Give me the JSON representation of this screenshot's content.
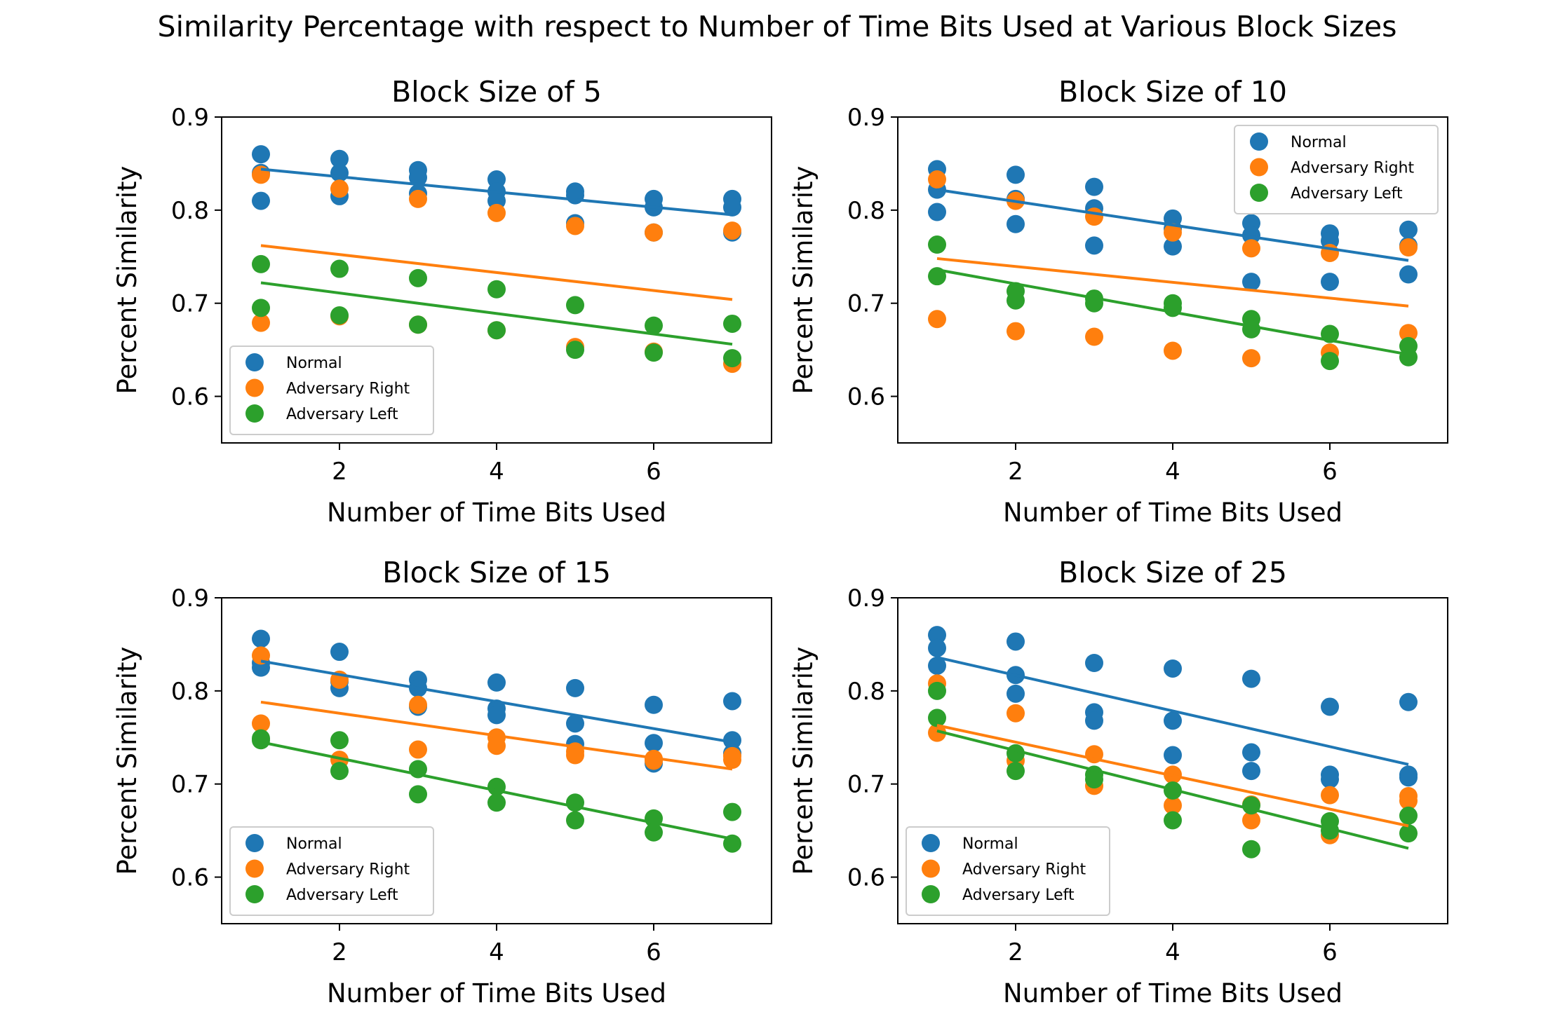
{
  "figure": {
    "suptitle": "Similarity Percentage with respect to Number of Time Bits Used at Various Block Sizes"
  },
  "chart_data": [
    {
      "type": "scatter",
      "title": "Block Size of 5",
      "xlabel": "Number of Time Bits Used",
      "ylabel": "Percent Similarity",
      "xlim": [
        0.5,
        7.5
      ],
      "ylim": [
        0.55,
        0.9
      ],
      "xticks": [
        2,
        4,
        6
      ],
      "yticks": [
        0.6,
        0.7,
        0.8,
        0.9
      ],
      "legend_position": "lower-left",
      "series": [
        {
          "name": "Normal",
          "color": "#1f77b4",
          "points": [
            [
              1,
              0.86
            ],
            [
              1,
              0.84
            ],
            [
              1,
              0.81
            ],
            [
              2,
              0.855
            ],
            [
              2,
              0.84
            ],
            [
              2,
              0.815
            ],
            [
              3,
              0.843
            ],
            [
              3,
              0.835
            ],
            [
              3,
              0.818
            ],
            [
              4,
              0.833
            ],
            [
              4,
              0.82
            ],
            [
              4,
              0.81
            ],
            [
              5,
              0.82
            ],
            [
              5,
              0.816
            ],
            [
              5,
              0.786
            ],
            [
              6,
              0.812
            ],
            [
              6,
              0.803
            ],
            [
              6,
              0.776
            ],
            [
              7,
              0.812
            ],
            [
              7,
              0.803
            ],
            [
              7,
              0.776
            ]
          ],
          "trend": [
            [
              1,
              0.844
            ],
            [
              7,
              0.795
            ]
          ]
        },
        {
          "name": "Adversary Right",
          "color": "#ff7f0e",
          "points": [
            [
              1,
              0.838
            ],
            [
              1,
              0.679
            ],
            [
              2,
              0.823
            ],
            [
              2,
              0.686
            ],
            [
              3,
              0.812
            ],
            [
              3,
              0.677
            ],
            [
              4,
              0.797
            ],
            [
              4,
              0.671
            ],
            [
              5,
              0.783
            ],
            [
              5,
              0.653
            ],
            [
              6,
              0.776
            ],
            [
              6,
              0.648
            ],
            [
              7,
              0.778
            ],
            [
              7,
              0.635
            ]
          ],
          "trend": [
            [
              1,
              0.762
            ],
            [
              7,
              0.704
            ]
          ]
        },
        {
          "name": "Adversary Left",
          "color": "#2ca02c",
          "points": [
            [
              1,
              0.742
            ],
            [
              1,
              0.695
            ],
            [
              2,
              0.737
            ],
            [
              2,
              0.687
            ],
            [
              3,
              0.727
            ],
            [
              3,
              0.677
            ],
            [
              4,
              0.715
            ],
            [
              4,
              0.671
            ],
            [
              5,
              0.698
            ],
            [
              5,
              0.65
            ],
            [
              6,
              0.676
            ],
            [
              6,
              0.647
            ],
            [
              7,
              0.678
            ],
            [
              7,
              0.641
            ]
          ],
          "trend": [
            [
              1,
              0.722
            ],
            [
              7,
              0.656
            ]
          ]
        }
      ]
    },
    {
      "type": "scatter",
      "title": "Block Size of 10",
      "xlabel": "Number of Time Bits Used",
      "ylabel": "Percent Similarity",
      "xlim": [
        0.5,
        7.5
      ],
      "ylim": [
        0.55,
        0.9
      ],
      "xticks": [
        2,
        4,
        6
      ],
      "yticks": [
        0.6,
        0.7,
        0.8,
        0.9
      ],
      "legend_position": "upper-right",
      "series": [
        {
          "name": "Normal",
          "color": "#1f77b4",
          "points": [
            [
              1,
              0.844
            ],
            [
              1,
              0.822
            ],
            [
              1,
              0.798
            ],
            [
              2,
              0.838
            ],
            [
              2,
              0.812
            ],
            [
              2,
              0.785
            ],
            [
              3,
              0.825
            ],
            [
              3,
              0.802
            ],
            [
              3,
              0.762
            ],
            [
              4,
              0.791
            ],
            [
              4,
              0.78
            ],
            [
              4,
              0.761
            ],
            [
              5,
              0.786
            ],
            [
              5,
              0.773
            ],
            [
              5,
              0.723
            ],
            [
              6,
              0.775
            ],
            [
              6,
              0.767
            ],
            [
              6,
              0.723
            ],
            [
              7,
              0.779
            ],
            [
              7,
              0.762
            ],
            [
              7,
              0.731
            ]
          ],
          "trend": [
            [
              1,
              0.822
            ],
            [
              7,
              0.746
            ]
          ]
        },
        {
          "name": "Adversary Right",
          "color": "#ff7f0e",
          "points": [
            [
              1,
              0.833
            ],
            [
              1,
              0.683
            ],
            [
              2,
              0.81
            ],
            [
              2,
              0.67
            ],
            [
              3,
              0.793
            ],
            [
              3,
              0.664
            ],
            [
              4,
              0.776
            ],
            [
              4,
              0.649
            ],
            [
              5,
              0.759
            ],
            [
              5,
              0.641
            ],
            [
              6,
              0.754
            ],
            [
              6,
              0.647
            ],
            [
              7,
              0.76
            ],
            [
              7,
              0.668
            ]
          ],
          "trend": [
            [
              1,
              0.748
            ],
            [
              7,
              0.697
            ]
          ]
        },
        {
          "name": "Adversary Left",
          "color": "#2ca02c",
          "points": [
            [
              1,
              0.763
            ],
            [
              1,
              0.729
            ],
            [
              2,
              0.713
            ],
            [
              2,
              0.703
            ],
            [
              3,
              0.705
            ],
            [
              3,
              0.7
            ],
            [
              4,
              0.7
            ],
            [
              4,
              0.695
            ],
            [
              5,
              0.683
            ],
            [
              5,
              0.672
            ],
            [
              6,
              0.667
            ],
            [
              6,
              0.638
            ],
            [
              7,
              0.654
            ],
            [
              7,
              0.642
            ]
          ],
          "trend": [
            [
              1,
              0.736
            ],
            [
              7,
              0.645
            ]
          ]
        }
      ]
    },
    {
      "type": "scatter",
      "title": "Block Size of 15",
      "xlabel": "Number of Time Bits Used",
      "ylabel": "Percent Similarity",
      "xlim": [
        0.5,
        7.5
      ],
      "ylim": [
        0.55,
        0.9
      ],
      "xticks": [
        2,
        4,
        6
      ],
      "yticks": [
        0.6,
        0.7,
        0.8,
        0.9
      ],
      "legend_position": "lower-left",
      "series": [
        {
          "name": "Normal",
          "color": "#1f77b4",
          "points": [
            [
              1,
              0.856
            ],
            [
              1,
              0.83
            ],
            [
              1,
              0.825
            ],
            [
              2,
              0.842
            ],
            [
              2,
              0.81
            ],
            [
              2,
              0.803
            ],
            [
              3,
              0.812
            ],
            [
              3,
              0.803
            ],
            [
              3,
              0.783
            ],
            [
              4,
              0.809
            ],
            [
              4,
              0.781
            ],
            [
              4,
              0.774
            ],
            [
              5,
              0.803
            ],
            [
              5,
              0.765
            ],
            [
              5,
              0.743
            ],
            [
              6,
              0.785
            ],
            [
              6,
              0.744
            ],
            [
              6,
              0.722
            ],
            [
              7,
              0.789
            ],
            [
              7,
              0.747
            ],
            [
              7,
              0.733
            ]
          ],
          "trend": [
            [
              1,
              0.832
            ],
            [
              7,
              0.745
            ]
          ]
        },
        {
          "name": "Adversary Right",
          "color": "#ff7f0e",
          "points": [
            [
              1,
              0.838
            ],
            [
              1,
              0.765
            ],
            [
              2,
              0.812
            ],
            [
              2,
              0.726
            ],
            [
              3,
              0.785
            ],
            [
              3,
              0.737
            ],
            [
              4,
              0.75
            ],
            [
              4,
              0.741
            ],
            [
              5,
              0.735
            ],
            [
              5,
              0.731
            ],
            [
              6,
              0.727
            ],
            [
              6,
              0.725
            ],
            [
              7,
              0.73
            ],
            [
              7,
              0.726
            ]
          ],
          "trend": [
            [
              1,
              0.788
            ],
            [
              7,
              0.716
            ]
          ]
        },
        {
          "name": "Adversary Left",
          "color": "#2ca02c",
          "points": [
            [
              1,
              0.749
            ],
            [
              1,
              0.747
            ],
            [
              2,
              0.747
            ],
            [
              2,
              0.714
            ],
            [
              3,
              0.716
            ],
            [
              3,
              0.689
            ],
            [
              4,
              0.697
            ],
            [
              4,
              0.68
            ],
            [
              5,
              0.68
            ],
            [
              5,
              0.661
            ],
            [
              6,
              0.663
            ],
            [
              6,
              0.648
            ],
            [
              7,
              0.67
            ],
            [
              7,
              0.636
            ]
          ],
          "trend": [
            [
              1,
              0.745
            ],
            [
              7,
              0.641
            ]
          ]
        }
      ]
    },
    {
      "type": "scatter",
      "title": "Block Size of 25",
      "xlabel": "Number of Time Bits Used",
      "ylabel": "Percent Similarity",
      "xlim": [
        0.5,
        7.5
      ],
      "ylim": [
        0.55,
        0.9
      ],
      "xticks": [
        2,
        4,
        6
      ],
      "yticks": [
        0.6,
        0.7,
        0.8,
        0.9
      ],
      "legend_position": "lower-left",
      "series": [
        {
          "name": "Normal",
          "color": "#1f77b4",
          "points": [
            [
              1,
              0.86
            ],
            [
              1,
              0.846
            ],
            [
              1,
              0.827
            ],
            [
              2,
              0.853
            ],
            [
              2,
              0.817
            ],
            [
              2,
              0.797
            ],
            [
              3,
              0.83
            ],
            [
              3,
              0.777
            ],
            [
              3,
              0.768
            ],
            [
              4,
              0.824
            ],
            [
              4,
              0.768
            ],
            [
              4,
              0.731
            ],
            [
              5,
              0.813
            ],
            [
              5,
              0.734
            ],
            [
              5,
              0.714
            ],
            [
              6,
              0.783
            ],
            [
              6,
              0.71
            ],
            [
              6,
              0.705
            ],
            [
              7,
              0.788
            ],
            [
              7,
              0.71
            ],
            [
              7,
              0.707
            ]
          ],
          "trend": [
            [
              1,
              0.836
            ],
            [
              7,
              0.721
            ]
          ]
        },
        {
          "name": "Adversary Right",
          "color": "#ff7f0e",
          "points": [
            [
              1,
              0.808
            ],
            [
              1,
              0.755
            ],
            [
              2,
              0.776
            ],
            [
              2,
              0.725
            ],
            [
              3,
              0.732
            ],
            [
              3,
              0.698
            ],
            [
              4,
              0.71
            ],
            [
              4,
              0.677
            ],
            [
              5,
              0.678
            ],
            [
              5,
              0.661
            ],
            [
              6,
              0.688
            ],
            [
              6,
              0.645
            ],
            [
              7,
              0.687
            ],
            [
              7,
              0.682
            ]
          ],
          "trend": [
            [
              1,
              0.763
            ],
            [
              7,
              0.655
            ]
          ]
        },
        {
          "name": "Adversary Left",
          "color": "#2ca02c",
          "points": [
            [
              1,
              0.8
            ],
            [
              1,
              0.771
            ],
            [
              2,
              0.733
            ],
            [
              2,
              0.714
            ],
            [
              3,
              0.71
            ],
            [
              3,
              0.705
            ],
            [
              4,
              0.693
            ],
            [
              4,
              0.661
            ],
            [
              5,
              0.677
            ],
            [
              5,
              0.63
            ],
            [
              6,
              0.66
            ],
            [
              6,
              0.65
            ],
            [
              7,
              0.666
            ],
            [
              7,
              0.647
            ]
          ],
          "trend": [
            [
              1,
              0.757
            ],
            [
              7,
              0.631
            ]
          ]
        }
      ]
    }
  ]
}
